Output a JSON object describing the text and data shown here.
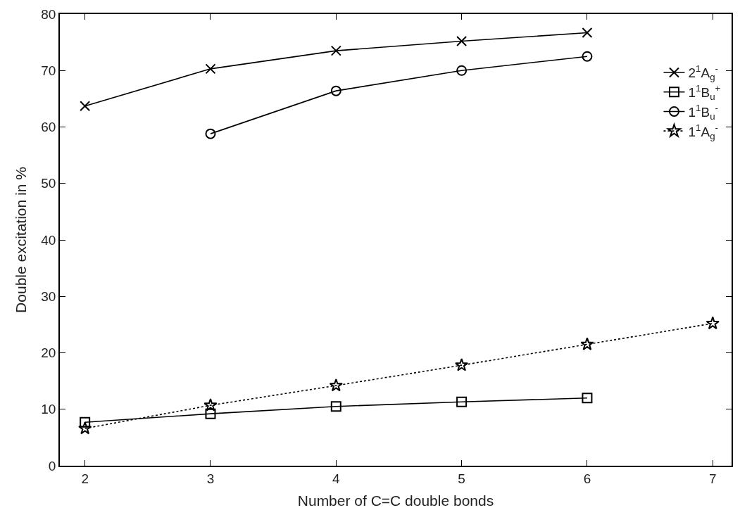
{
  "chart_data": {
    "type": "line",
    "xlabel": "Number of C=C double bonds",
    "ylabel": "Double excitation in %",
    "xlim": [
      1.8,
      7.15
    ],
    "xticks": [
      2,
      3,
      4,
      5,
      6,
      7
    ],
    "ylim": [
      0,
      80
    ],
    "yticks": [
      0,
      10,
      20,
      30,
      40,
      50,
      60,
      70,
      80
    ],
    "legend": "top right",
    "series": [
      {
        "name": "2$^{1}$A$_{g}$$^{-}$",
        "color": "#000000",
        "marker": "cross",
        "x": [
          2,
          3,
          4,
          5,
          6
        ],
        "values": [
          63.7,
          70.3,
          73.5,
          75.2,
          76.7
        ]
      },
      {
        "name": "1$^{1}$B$_{u}$$^{+}$",
        "color": "#000000",
        "marker": "square",
        "x": [
          2,
          3,
          4,
          5,
          6
        ],
        "values": [
          7.7,
          9.2,
          10.5,
          11.3,
          12.0
        ]
      },
      {
        "name": "1$^{1}$B$_{u}$$^{-}$",
        "color": "#000000",
        "marker": "circle",
        "x": [
          3,
          4,
          5,
          6
        ],
        "values": [
          58.8,
          66.4,
          70.0,
          72.5
        ]
      },
      {
        "name": "1$^{1}$A$_{g}$$^{-}$",
        "color": "#000000",
        "marker": "star",
        "line_style": "dotted",
        "x": [
          2,
          3,
          4,
          5,
          6,
          7
        ],
        "values": [
          6.6,
          10.7,
          14.2,
          17.8,
          21.5,
          25.2
        ]
      }
    ]
  }
}
